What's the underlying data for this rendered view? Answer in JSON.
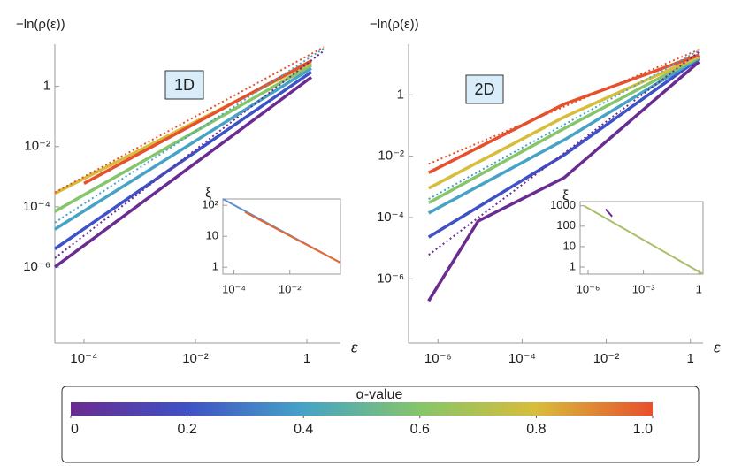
{
  "chart_data": [
    {
      "type": "line",
      "log_x": true,
      "log_y": true,
      "ylabel": "−ln(ρ(ε))",
      "xlabel": "ε",
      "annotation": "1D",
      "xlim": [
        3e-05,
        4
      ],
      "ylim": [
        3e-09,
        25
      ],
      "xticks": [
        {
          "value": 0.0001,
          "label": "10⁻⁴"
        },
        {
          "value": 0.01,
          "label": "10⁻²"
        },
        1
      ],
      "yticks": [
        1,
        {
          "value": 0.01,
          "label": "10⁻²"
        },
        {
          "value": 0.0001,
          "label": "10⁻⁴"
        },
        {
          "value": 1e-06,
          "label": "10⁻⁶"
        }
      ],
      "series": [
        {
          "color": "#6a2c91",
          "x": [
            3e-05,
            1.2
          ],
          "values": [
            1e-06,
            2
          ]
        },
        {
          "color": "#3f51c6",
          "x": [
            3e-05,
            1.2
          ],
          "values": [
            4e-06,
            3
          ]
        },
        {
          "color": "#46a3c6",
          "x": [
            3e-05,
            1.2
          ],
          "values": [
            1.8e-05,
            4
          ]
        },
        {
          "color": "#86c56a",
          "x": [
            3e-05,
            1.2
          ],
          "values": [
            7e-05,
            5
          ]
        },
        {
          "color": "#d8bd3a",
          "x": [
            3e-05,
            1.2
          ],
          "values": [
            0.00028,
            6
          ]
        },
        {
          "color": "#e7502e",
          "x": [
            0.0001,
            1.2
          ],
          "values": [
            0.0006,
            7
          ]
        },
        {
          "color": "#e7502e",
          "dash": true,
          "x": [
            3e-05,
            2
          ],
          "values": [
            0.0003,
            20
          ]
        },
        {
          "color": "#46a3c6",
          "dash": true,
          "x": [
            3e-05,
            2
          ],
          "values": [
            3e-05,
            18
          ]
        },
        {
          "color": "#6a2c91",
          "dash": true,
          "x": [
            3e-05,
            2
          ],
          "values": [
            2e-06,
            15
          ]
        }
      ]
    },
    {
      "type": "line",
      "log_x": true,
      "log_y": true,
      "ylabel": "−ln(ρ(ε))",
      "xlabel": "ε",
      "annotation": "2D",
      "xlim": [
        2e-07,
        2
      ],
      "ylim": [
        8e-09,
        45
      ],
      "xticks": [
        {
          "value": 1e-06,
          "label": "10⁻⁶"
        },
        {
          "value": 0.0001,
          "label": "10⁻⁴"
        },
        {
          "value": 0.01,
          "label": "10⁻²"
        },
        1
      ],
      "yticks": [
        1,
        {
          "value": 0.01,
          "label": "10⁻²"
        },
        {
          "value": 0.0001,
          "label": "10⁻⁴"
        },
        {
          "value": 1e-06,
          "label": "10⁻⁶"
        }
      ],
      "series": [
        {
          "color": "#6a2c91",
          "x": [
            6e-07,
            9e-06,
            0.001,
            1.6
          ],
          "values": [
            1.9e-07,
            7.6e-05,
            0.002,
            12
          ]
        },
        {
          "color": "#3f51c6",
          "x": [
            6e-07,
            0.001,
            1.6
          ],
          "values": [
            2.3e-05,
            0.011,
            15
          ]
        },
        {
          "color": "#46a3c6",
          "x": [
            6e-07,
            0.001,
            1.6
          ],
          "values": [
            0.00014,
            0.034,
            16
          ]
        },
        {
          "color": "#86c56a",
          "x": [
            6e-07,
            0.001,
            1.6
          ],
          "values": [
            0.0003,
            0.08,
            17
          ]
        },
        {
          "color": "#d8bd3a",
          "x": [
            6e-07,
            0.001,
            1.6
          ],
          "values": [
            0.0009,
            0.19,
            18
          ]
        },
        {
          "color": "#e7502e",
          "x": [
            6e-07,
            0.001,
            1.6
          ],
          "values": [
            0.0029,
            0.5,
            20
          ]
        },
        {
          "color": "#e7502e",
          "dash": true,
          "x": [
            6e-07,
            1.6
          ],
          "values": [
            0.0056,
            30
          ]
        },
        {
          "color": "#46a3c6",
          "dash": true,
          "x": [
            6e-07,
            1.6
          ],
          "values": [
            0.0004,
            28
          ]
        },
        {
          "color": "#6a2c91",
          "dash": true,
          "x": [
            6e-07,
            1.6
          ],
          "values": [
            6e-06,
            25
          ]
        }
      ]
    },
    {
      "type": "line",
      "inset": true,
      "log_x": true,
      "log_y": true,
      "ylabel": "ξ",
      "xlim": [
        4e-05,
        0.65
      ],
      "ylim": [
        0.6,
        160
      ],
      "xticks": [
        {
          "value": 0.0001,
          "label": "10⁻⁴"
        },
        {
          "value": 0.01,
          "label": "10⁻²"
        }
      ],
      "yticks": [
        {
          "value": 100,
          "label": "10²"
        },
        10,
        1
      ],
      "series": [
        {
          "color": "#5b8fd0",
          "x": [
            4e-05,
            0.65
          ],
          "values": [
            160,
            1.4
          ]
        },
        {
          "color": "#e8672e",
          "x": [
            0.00025,
            0.65
          ],
          "values": [
            60,
            1.4
          ]
        }
      ]
    },
    {
      "type": "line",
      "inset": true,
      "log_x": true,
      "log_y": true,
      "ylabel": "ξ",
      "xlim": [
        3.7e-07,
        1.7
      ],
      "ylim": [
        0.45,
        1600
      ],
      "xticks": [
        {
          "value": 1e-06,
          "label": "10⁻⁶"
        },
        {
          "value": 0.001,
          "label": "10⁻³"
        },
        1
      ],
      "yticks": [
        1000,
        100,
        10,
        1
      ],
      "series": [
        {
          "color": "#a8bf6a",
          "x": [
            6e-07,
            1.7
          ],
          "values": [
            1000,
            0.45
          ]
        },
        {
          "color": "#6a2c91",
          "x": [
            9e-06,
            2e-05
          ],
          "values": [
            680,
            300
          ]
        }
      ]
    },
    {
      "type": "colorbar",
      "title": "α-value",
      "lim": [
        0,
        1
      ],
      "colors": [
        "#6a2c91",
        "#3f51c6",
        "#46a3c6",
        "#86c56a",
        "#d8bd3a",
        "#e7502e"
      ],
      "ticks": [
        0,
        0.2,
        0.4,
        0.6,
        0.8,
        {
          "value": 1,
          "label": "1.0"
        }
      ]
    }
  ]
}
